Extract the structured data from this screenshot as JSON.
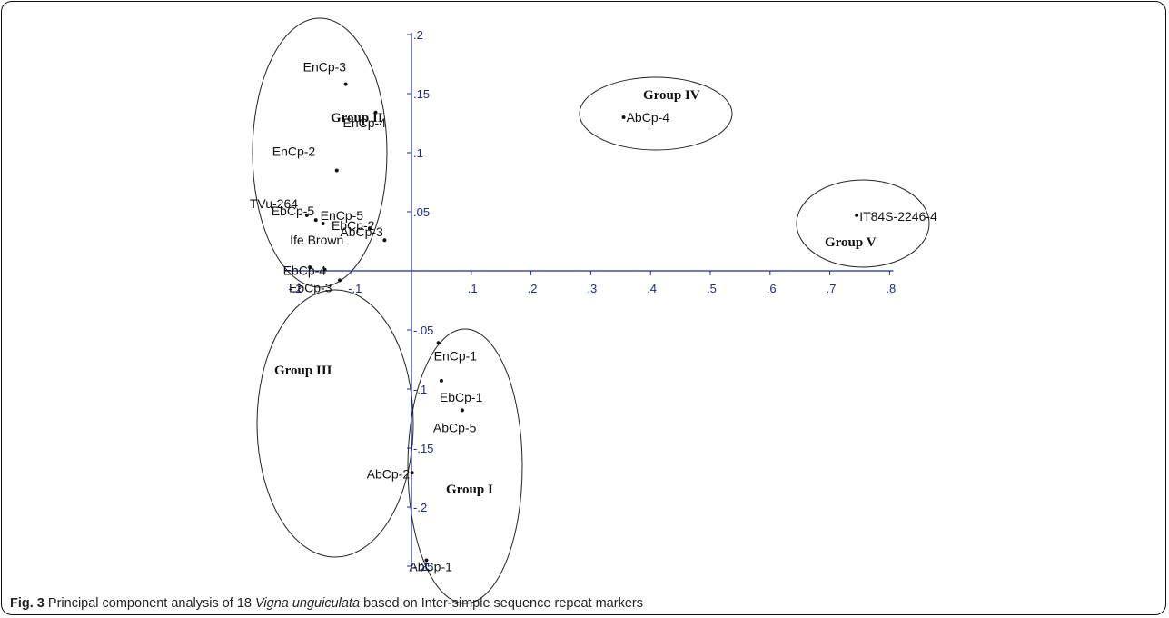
{
  "caption": {
    "fig_label": "Fig. 3",
    "text_before": "Principal component analysis of 18",
    "species": "Vigna unguiculata",
    "text_after": "based on Inter-simple sequence repeat markers"
  },
  "chart_data": {
    "type": "scatter",
    "title": "",
    "xlabel": "",
    "ylabel": "",
    "xlim": [
      -0.2,
      0.8
    ],
    "ylim": [
      -0.25,
      0.2
    ],
    "grid": false,
    "colors": {
      "axis": "#1f2a8a",
      "points": "#111111",
      "ellipses": "#222222"
    },
    "x_ticks": [
      {
        "value": -0.2,
        "label": "-.2"
      },
      {
        "value": -0.1,
        "label": "-.1"
      },
      {
        "value": 0.1,
        "label": ".1"
      },
      {
        "value": 0.2,
        "label": ".2"
      },
      {
        "value": 0.3,
        "label": ".3"
      },
      {
        "value": 0.4,
        "label": ".4"
      },
      {
        "value": 0.5,
        "label": ".5"
      },
      {
        "value": 0.6,
        "label": ".6"
      },
      {
        "value": 0.7,
        "label": ".7"
      },
      {
        "value": 0.8,
        "label": ".8"
      }
    ],
    "y_ticks": [
      {
        "value": 0.2,
        "label": ".2"
      },
      {
        "value": 0.15,
        "label": ".15"
      },
      {
        "value": 0.1,
        "label": ".1"
      },
      {
        "value": 0.05,
        "label": ".05"
      },
      {
        "value": -0.05,
        "label": "-.05"
      },
      {
        "value": -0.1,
        "label": "-.1"
      },
      {
        "value": -0.15,
        "label": "-.15"
      },
      {
        "value": -0.2,
        "label": "-.2"
      },
      {
        "value": -0.25,
        "label": "-.25"
      }
    ],
    "points": [
      {
        "label": "EnCp-3",
        "x": -0.11,
        "y": 0.158
      },
      {
        "label": "EnCp-4",
        "x": -0.06,
        "y": 0.134
      },
      {
        "label": "EnCp-2",
        "x": -0.125,
        "y": 0.085
      },
      {
        "label": "TVu-264",
        "x": -0.175,
        "y": 0.047
      },
      {
        "label": "EbCp-5",
        "x": -0.16,
        "y": 0.043
      },
      {
        "label": "EnCp-5",
        "x": -0.148,
        "y": 0.04
      },
      {
        "label": "EbCp-2",
        "x": -0.07,
        "y": 0.036
      },
      {
        "label": "AbCp-3",
        "x": -0.045,
        "y": 0.026
      },
      {
        "label": "Ife Brown",
        "x": -0.17,
        "y": 0.003
      },
      {
        "label": "EbCp-4",
        "x": -0.145,
        "y": 0.001
      },
      {
        "label": "EbCp-3",
        "x": -0.12,
        "y": -0.008
      },
      {
        "label": "EnCp-1",
        "x": 0.045,
        "y": -0.061
      },
      {
        "label": "EbCp-1",
        "x": 0.05,
        "y": -0.093
      },
      {
        "label": "AbCp-5",
        "x": 0.085,
        "y": -0.118
      },
      {
        "label": "AbCp-2",
        "x": 0.001,
        "y": -0.171
      },
      {
        "label": "AbCp-1",
        "x": 0.025,
        "y": -0.245
      },
      {
        "label": "AbCp-4",
        "x": 0.355,
        "y": 0.13
      },
      {
        "label": "IT84S-2246-4",
        "x": 0.745,
        "y": 0.047
      }
    ],
    "groups": [
      {
        "label": "Group I",
        "members": [
          "EnCp-1",
          "EbCp-1",
          "AbCp-5",
          "AbCp-1"
        ]
      },
      {
        "label": "Group II",
        "members": [
          "EnCp-3",
          "EnCp-4",
          "EnCp-2",
          "TVu-264",
          "EbCp-5",
          "EnCp-5",
          "EbCp-2",
          "AbCp-3",
          "Ife Brown",
          "EbCp-4",
          "EbCp-3"
        ]
      },
      {
        "label": "Group III",
        "members": [
          "AbCp-2"
        ]
      },
      {
        "label": "Group IV",
        "members": [
          "AbCp-4"
        ]
      },
      {
        "label": "Group V",
        "members": [
          "IT84S-2246-4"
        ]
      }
    ]
  }
}
